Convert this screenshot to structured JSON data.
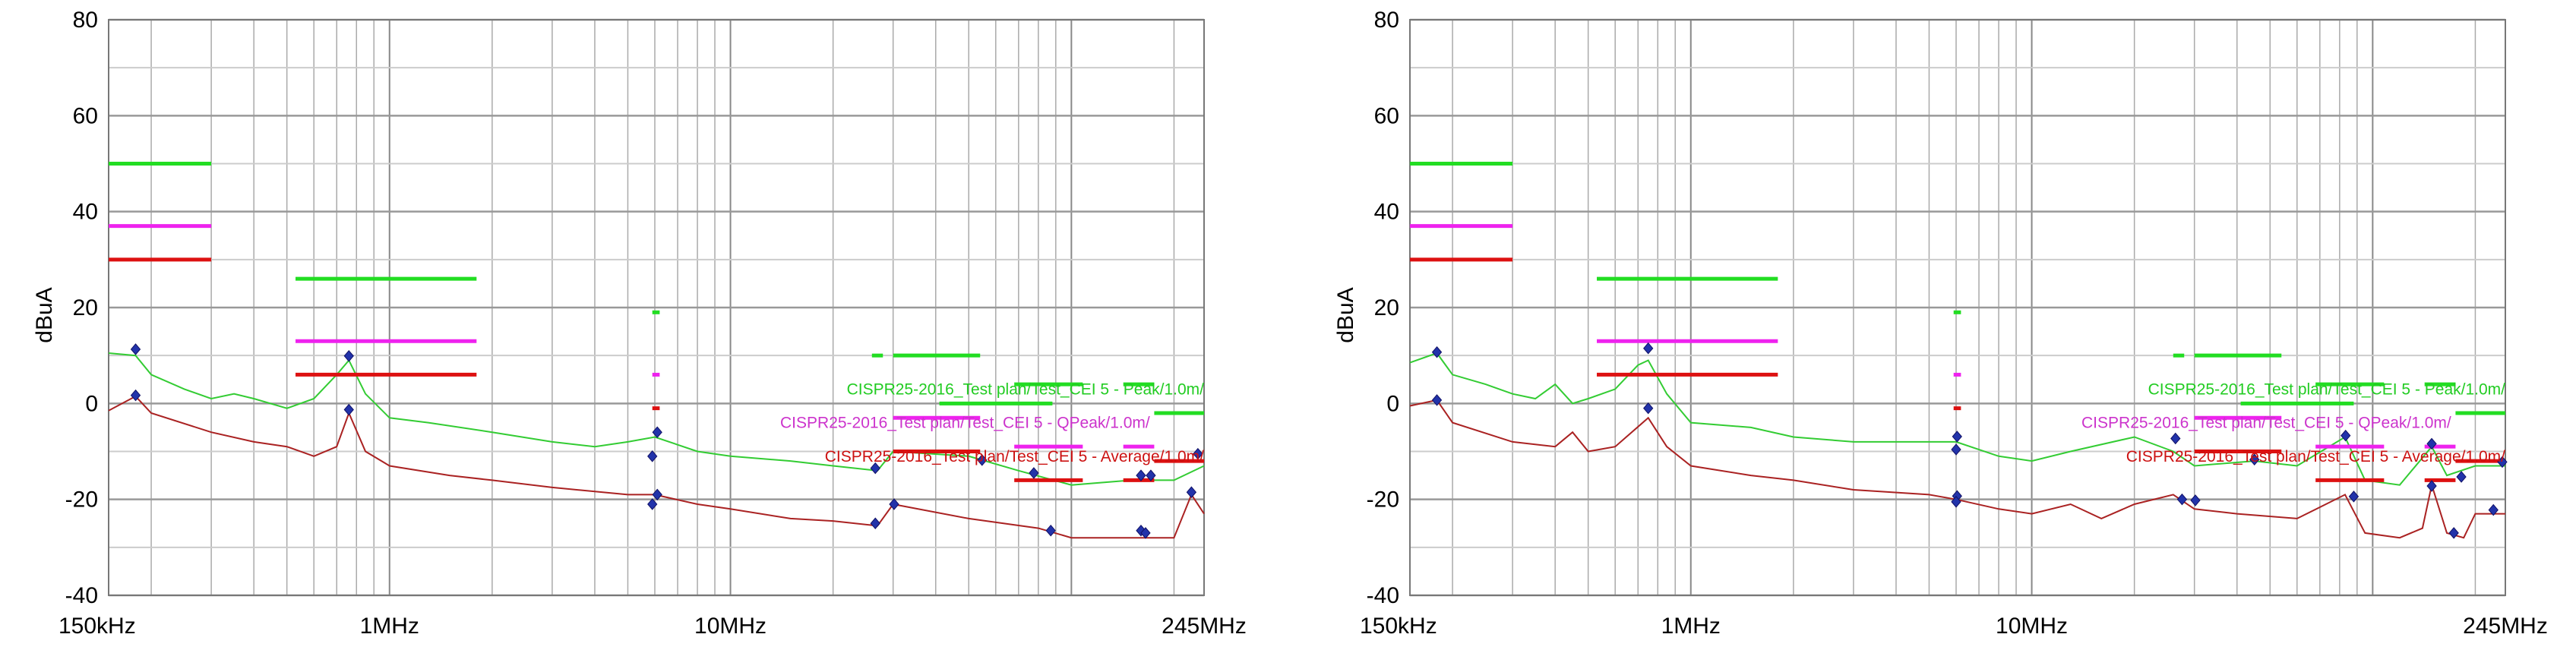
{
  "chart_data": [
    {
      "type": "line",
      "ylabel": "dBuA",
      "xscale": "log",
      "xlim_mhz": [
        0.15,
        245
      ],
      "ylim": [
        -40,
        80
      ],
      "grid": true,
      "y_ticks": [
        "80",
        "60",
        "40",
        "20",
        "0",
        "-20",
        "-40"
      ],
      "y_tick_values": [
        80,
        60,
        40,
        20,
        0,
        -20,
        -40
      ],
      "x_ticks": [
        {
          "label": "150kHz",
          "value": 0.15
        },
        {
          "label": "1MHz",
          "value": 1
        },
        {
          "label": "10MHz",
          "value": 10
        },
        {
          "label": "245MHz",
          "value": 245
        }
      ],
      "legend": [
        {
          "name": "CISPR25-2016_Test plan/Test_CEI 5 - Peak/1.0m/",
          "color": "#22cc22",
          "y": 3
        },
        {
          "name": "CISPR25-2016_Test plan/Test_CEI 5 - QPeak/1.0m/",
          "color": "#cc33cc",
          "y": -4
        },
        {
          "name": "CISPR25-2016_Test plan/Test_CEI 5 - Average/1.0m/",
          "color": "#cc1111",
          "y": -11
        }
      ],
      "limits": [
        {
          "kind": "peak",
          "color": "#22dd22",
          "segments": [
            [
              0.15,
              0.3,
              50
            ],
            [
              0.53,
              1.8,
              26
            ],
            [
              5.9,
              6.2,
              19
            ],
            [
              26,
              28,
              10
            ],
            [
              30,
              54,
              10
            ],
            [
              41,
              88,
              0
            ],
            [
              68,
              108,
              4
            ],
            [
              142,
              175,
              4
            ],
            [
              175,
              245,
              -2
            ]
          ]
        },
        {
          "kind": "qpeak",
          "color": "#ee22ee",
          "segments": [
            [
              0.15,
              0.3,
              37
            ],
            [
              0.53,
              1.8,
              13
            ],
            [
              5.9,
              6.2,
              6
            ],
            [
              30,
              54,
              -3
            ],
            [
              68,
              108,
              -9
            ],
            [
              142,
              175,
              -9
            ]
          ]
        },
        {
          "kind": "average",
          "color": "#dd1111",
          "segments": [
            [
              0.15,
              0.3,
              30
            ],
            [
              0.53,
              1.8,
              6
            ],
            [
              5.9,
              6.2,
              -1
            ],
            [
              30,
              54,
              -10
            ],
            [
              68,
              108,
              -16
            ],
            [
              142,
              175,
              -16
            ],
            [
              175,
              245,
              -12
            ]
          ]
        }
      ],
      "series": [
        {
          "kind": "peak-trace",
          "color": "#33cc33",
          "points": [
            [
              0.15,
              10.5
            ],
            [
              0.18,
              10
            ],
            [
              0.2,
              6
            ],
            [
              0.25,
              3
            ],
            [
              0.3,
              1
            ],
            [
              0.35,
              2
            ],
            [
              0.4,
              1
            ],
            [
              0.5,
              -1
            ],
            [
              0.6,
              1
            ],
            [
              0.7,
              6
            ],
            [
              0.76,
              9
            ],
            [
              0.85,
              2
            ],
            [
              1.0,
              -3
            ],
            [
              1.3,
              -4
            ],
            [
              2,
              -6
            ],
            [
              3,
              -8
            ],
            [
              4,
              -9
            ],
            [
              5,
              -8
            ],
            [
              6,
              -7
            ],
            [
              8,
              -10
            ],
            [
              10,
              -11
            ],
            [
              15,
              -12
            ],
            [
              20,
              -13
            ],
            [
              27,
              -14
            ],
            [
              30,
              -10
            ],
            [
              50,
              -11
            ],
            [
              70,
              -14
            ],
            [
              100,
              -17
            ],
            [
              150,
              -16
            ],
            [
              200,
              -16
            ],
            [
              245,
              -13
            ]
          ]
        },
        {
          "kind": "average-trace",
          "color": "#aa2222",
          "points": [
            [
              0.15,
              -1.5
            ],
            [
              0.18,
              1.5
            ],
            [
              0.2,
              -2
            ],
            [
              0.3,
              -6
            ],
            [
              0.4,
              -8
            ],
            [
              0.5,
              -9
            ],
            [
              0.6,
              -11
            ],
            [
              0.7,
              -9
            ],
            [
              0.76,
              -2
            ],
            [
              0.85,
              -10
            ],
            [
              1.0,
              -13
            ],
            [
              1.5,
              -15
            ],
            [
              2,
              -16
            ],
            [
              3,
              -17.5
            ],
            [
              5,
              -19
            ],
            [
              6,
              -19
            ],
            [
              8,
              -21
            ],
            [
              10,
              -22
            ],
            [
              15,
              -24
            ],
            [
              20,
              -24.5
            ],
            [
              27,
              -25.5
            ],
            [
              30,
              -21
            ],
            [
              50,
              -24
            ],
            [
              80,
              -26
            ],
            [
              100,
              -28
            ],
            [
              150,
              -28
            ],
            [
              200,
              -28
            ],
            [
              225,
              -19
            ],
            [
              245,
              -23
            ]
          ]
        }
      ],
      "markers": [
        [
          0.18,
          11.3
        ],
        [
          0.18,
          1.7
        ],
        [
          0.76,
          9.9
        ],
        [
          0.76,
          -1.3
        ],
        [
          5.9,
          -11
        ],
        [
          6.1,
          -6
        ],
        [
          5.9,
          -21
        ],
        [
          6.1,
          -19
        ],
        [
          26.6,
          -13.5
        ],
        [
          26.6,
          -25
        ],
        [
          30.2,
          -21
        ],
        [
          54.7,
          -11.8
        ],
        [
          77.6,
          -14.5
        ],
        [
          87,
          -26.5
        ],
        [
          160,
          -15
        ],
        [
          171,
          -15
        ],
        [
          160,
          -26.5
        ],
        [
          165,
          -27
        ],
        [
          225,
          -18.5
        ],
        [
          235,
          -10.5
        ]
      ]
    },
    {
      "type": "line",
      "ylabel": "dBuA",
      "xscale": "log",
      "xlim_mhz": [
        0.15,
        245
      ],
      "ylim": [
        -40,
        80
      ],
      "grid": true,
      "y_ticks": [
        "80",
        "60",
        "40",
        "20",
        "0",
        "-20",
        "-40"
      ],
      "y_tick_values": [
        80,
        60,
        40,
        20,
        0,
        -20,
        -40
      ],
      "x_ticks": [
        {
          "label": "150kHz",
          "value": 0.15
        },
        {
          "label": "1MHz",
          "value": 1
        },
        {
          "label": "10MHz",
          "value": 10
        },
        {
          "label": "245MHz",
          "value": 245
        }
      ],
      "legend": [
        {
          "name": "CISPR25-2016_Test plan/Test_CEI 5 - Peak/1.0m/",
          "color": "#22cc22",
          "y": 3
        },
        {
          "name": "CISPR25-2016_Test plan/Test_CEI 5 - QPeak/1.0m/",
          "color": "#cc33cc",
          "y": -4
        },
        {
          "name": "CISPR25-2016_Test plan/Test_CEI 5 - Average/1.0m/",
          "color": "#cc1111",
          "y": -11
        }
      ],
      "limits": [
        {
          "kind": "peak",
          "color": "#22dd22",
          "segments": [
            [
              0.15,
              0.3,
              50
            ],
            [
              0.53,
              1.8,
              26
            ],
            [
              5.9,
              6.2,
              19
            ],
            [
              26,
              28,
              10
            ],
            [
              30,
              54,
              10
            ],
            [
              41,
              88,
              0
            ],
            [
              68,
              108,
              4
            ],
            [
              142,
              175,
              4
            ],
            [
              175,
              245,
              -2
            ]
          ]
        },
        {
          "kind": "qpeak",
          "color": "#ee22ee",
          "segments": [
            [
              0.15,
              0.3,
              37
            ],
            [
              0.53,
              1.8,
              13
            ],
            [
              5.9,
              6.2,
              6
            ],
            [
              30,
              54,
              -3
            ],
            [
              68,
              108,
              -9
            ],
            [
              142,
              175,
              -9
            ]
          ]
        },
        {
          "kind": "average",
          "color": "#dd1111",
          "segments": [
            [
              0.15,
              0.3,
              30
            ],
            [
              0.53,
              1.8,
              6
            ],
            [
              5.9,
              6.2,
              -1
            ],
            [
              30,
              54,
              -10
            ],
            [
              68,
              108,
              -16
            ],
            [
              142,
              175,
              -16
            ],
            [
              175,
              245,
              -12
            ]
          ]
        }
      ],
      "series": [
        {
          "kind": "peak-trace",
          "color": "#33cc33",
          "points": [
            [
              0.15,
              8.5
            ],
            [
              0.18,
              10.5
            ],
            [
              0.2,
              6
            ],
            [
              0.25,
              4
            ],
            [
              0.3,
              2
            ],
            [
              0.35,
              1
            ],
            [
              0.4,
              4
            ],
            [
              0.45,
              0
            ],
            [
              0.5,
              1
            ],
            [
              0.6,
              3
            ],
            [
              0.7,
              8
            ],
            [
              0.75,
              9
            ],
            [
              0.85,
              2
            ],
            [
              1,
              -4
            ],
            [
              1.5,
              -5
            ],
            [
              2,
              -7
            ],
            [
              3,
              -8
            ],
            [
              4,
              -8
            ],
            [
              6,
              -8
            ],
            [
              8,
              -11
            ],
            [
              10,
              -12
            ],
            [
              13,
              -10
            ],
            [
              20,
              -7
            ],
            [
              26,
              -10
            ],
            [
              30,
              -13
            ],
            [
              45,
              -12
            ],
            [
              60,
              -13
            ],
            [
              83,
              -7
            ],
            [
              95,
              -16
            ],
            [
              120,
              -17
            ],
            [
              149,
              -9
            ],
            [
              165,
              -15
            ],
            [
              200,
              -13
            ],
            [
              245,
              -13
            ]
          ]
        },
        {
          "kind": "average-trace",
          "color": "#aa2222",
          "points": [
            [
              0.15,
              -0.5
            ],
            [
              0.18,
              0.7
            ],
            [
              0.2,
              -4
            ],
            [
              0.3,
              -8
            ],
            [
              0.4,
              -9
            ],
            [
              0.45,
              -6
            ],
            [
              0.5,
              -10
            ],
            [
              0.6,
              -9
            ],
            [
              0.75,
              -3
            ],
            [
              0.85,
              -9
            ],
            [
              1,
              -13
            ],
            [
              1.5,
              -15
            ],
            [
              2,
              -16
            ],
            [
              3,
              -18
            ],
            [
              5,
              -19
            ],
            [
              6,
              -20
            ],
            [
              8,
              -22
            ],
            [
              10,
              -23
            ],
            [
              13,
              -21
            ],
            [
              16,
              -24
            ],
            [
              20,
              -21
            ],
            [
              26,
              -19
            ],
            [
              30,
              -22
            ],
            [
              40,
              -23
            ],
            [
              60,
              -24
            ],
            [
              83,
              -19
            ],
            [
              95,
              -27
            ],
            [
              120,
              -28
            ],
            [
              140,
              -26
            ],
            [
              149,
              -17
            ],
            [
              165,
              -27
            ],
            [
              185,
              -28
            ],
            [
              200,
              -23
            ],
            [
              245,
              -23
            ]
          ]
        }
      ],
      "markers": [
        [
          0.18,
          10.7
        ],
        [
          0.18,
          0.7
        ],
        [
          0.75,
          11.5
        ],
        [
          0.75,
          -1
        ],
        [
          6.04,
          -6.9
        ],
        [
          6.0,
          -9.6
        ],
        [
          6.04,
          -19.3
        ],
        [
          6.0,
          -20.5
        ],
        [
          26.4,
          -7.3
        ],
        [
          27.6,
          -20
        ],
        [
          30.2,
          -20.2
        ],
        [
          45,
          -11.7
        ],
        [
          83.3,
          -6.7
        ],
        [
          88,
          -19.4
        ],
        [
          149,
          -8.4
        ],
        [
          149,
          -17.2
        ],
        [
          173,
          -27
        ],
        [
          182,
          -15.3
        ],
        [
          226,
          -22.2
        ],
        [
          240,
          -12.2
        ]
      ]
    }
  ]
}
